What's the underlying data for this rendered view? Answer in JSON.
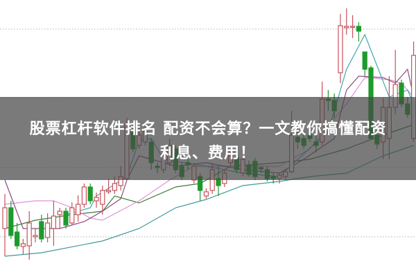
{
  "headline": {
    "line1": "股票杠杆软件排名 配资不会算？一文教你搞懂配资",
    "line2": "利息、费用！"
  },
  "colors": {
    "up": "#c8505a",
    "down": "#1e9a2c",
    "grid": "#b0b0b0",
    "ma_teal_long": "#3c9a9a",
    "ma_green": "#3a7a3a",
    "ma_pink": "#e090d8",
    "ma_purple": "#8a4a7a",
    "ma_teal_short": "#40a8b0",
    "overlay": "#464646"
  },
  "chart_data": {
    "type": "candlestick",
    "title": "",
    "xlabel": "",
    "ylabel": "",
    "ylim": [
      0,
      40
    ],
    "grid": "horizontal-dotted",
    "gridlines": [
      5.8,
      15.8,
      25.9,
      35.8
    ],
    "legend": "none",
    "candles": [
      [
        7.0,
        10.0,
        12.0,
        3.0
      ],
      [
        10.0,
        6.0,
        11.0,
        5.5
      ],
      [
        6.5,
        4.5,
        7.8,
        4.0
      ],
      [
        4.4,
        4.8,
        5.5,
        3.2
      ],
      [
        4.5,
        7.8,
        9.5,
        2.5
      ],
      [
        5.8,
        6.0,
        7.0,
        5.0
      ],
      [
        8.0,
        5.5,
        9.0,
        5.0
      ],
      [
        5.7,
        7.8,
        9.2,
        5.0
      ],
      [
        7.0,
        8.8,
        11.0,
        4.5
      ],
      [
        9.0,
        9.5,
        10.0,
        7.0
      ],
      [
        9.5,
        7.5,
        10.0,
        7.0
      ],
      [
        7.8,
        10.0,
        10.8,
        7.5
      ],
      [
        9.0,
        10.5,
        11.8,
        8.0
      ],
      [
        10.5,
        13.0,
        13.5,
        10.0
      ],
      [
        13.0,
        11.0,
        13.5,
        10.5
      ],
      [
        11.0,
        11.5,
        12.2,
        10.0
      ],
      [
        10.5,
        12.5,
        13.2,
        9.0
      ],
      [
        12.3,
        12.5,
        14.2,
        12.0
      ],
      [
        12.5,
        13.5,
        14.5,
        12.0
      ],
      [
        13.2,
        14.5,
        16.0,
        12.5
      ],
      [
        14.2,
        22.0,
        23.0,
        14.0
      ],
      [
        21.0,
        18.5,
        21.5,
        18.0
      ],
      [
        19.0,
        20.5,
        21.5,
        18.5
      ],
      [
        19.5,
        21.0,
        22.0,
        19.0
      ],
      [
        19.5,
        16.5,
        20.0,
        15.5
      ],
      [
        16.0,
        15.8,
        16.5,
        15.0
      ],
      [
        15.5,
        17.5,
        17.8,
        15.0
      ],
      [
        16.5,
        19.0,
        20.0,
        16.0
      ],
      [
        18.5,
        15.5,
        19.0,
        15.0
      ],
      [
        16.0,
        14.5,
        16.5,
        14.0
      ],
      [
        16.5,
        16.2,
        17.0,
        15.5
      ],
      [
        14.0,
        16.0,
        16.5,
        13.5
      ],
      [
        14.5,
        12.5,
        15.0,
        11.0
      ],
      [
        11.7,
        12.3,
        12.8,
        11.3
      ],
      [
        12.5,
        15.5,
        16.5,
        12.0
      ],
      [
        14.2,
        13.2,
        16.0,
        11.7
      ],
      [
        13.5,
        15.0,
        15.5,
        13.0
      ],
      [
        16.5,
        17.5,
        18.0,
        16.0
      ],
      [
        17.2,
        15.5,
        17.8,
        15.0
      ],
      [
        15.0,
        17.0,
        17.5,
        14.5
      ],
      [
        16.2,
        14.8,
        16.8,
        14.5
      ],
      [
        16.7,
        14.5,
        17.2,
        14.0
      ],
      [
        15.8,
        15.6,
        16.0,
        15.0
      ],
      [
        15.5,
        14.2,
        16.0,
        13.8
      ],
      [
        14.5,
        14.2,
        15.0,
        13.5
      ],
      [
        14.2,
        14.7,
        15.0,
        13.5
      ],
      [
        14.5,
        15.2,
        15.5,
        14.0
      ],
      [
        15.2,
        20.5,
        24.0,
        15.0
      ],
      [
        20.2,
        19.5,
        21.5,
        18.5
      ],
      [
        20.0,
        19.0,
        21.0,
        18.5
      ],
      [
        20.5,
        20.0,
        21.0,
        19.5
      ],
      [
        19.5,
        19.0,
        20.5,
        18.0
      ],
      [
        19.5,
        25.7,
        28.2,
        19.0
      ],
      [
        25.7,
        25.5,
        27.0,
        24.0
      ],
      [
        25.5,
        24.0,
        26.5,
        23.0
      ],
      [
        29.5,
        36.3,
        38.0,
        28.0
      ],
      [
        36.0,
        36.2,
        38.8,
        35.0
      ],
      [
        36.1,
        36.2,
        37.8,
        34.5
      ],
      [
        36.2,
        35.5,
        36.8,
        34.0
      ],
      [
        32.5,
        30.0,
        32.5,
        29.0
      ],
      [
        30.2,
        20.0,
        30.5,
        20.0
      ],
      [
        20.5,
        19.2,
        22.0,
        18.5
      ],
      [
        19.5,
        24.5,
        25.8,
        17.0
      ],
      [
        20.0,
        24.5,
        29.0,
        17.0
      ],
      [
        24.5,
        27.8,
        32.8,
        23.5
      ],
      [
        28.0,
        25.0,
        28.5,
        24.5
      ],
      [
        25.0,
        23.5,
        26.0,
        23.0
      ],
      [
        20.0,
        32.0,
        34.0,
        19.5
      ]
    ],
    "candle_fields": [
      "open",
      "close",
      "high",
      "low"
    ],
    "moving_averages": [
      {
        "color_key": "ma_teal_long",
        "points": [
          [
            0,
            3.0
          ],
          [
            6,
            3.5
          ],
          [
            16,
            5.2
          ],
          [
            22,
            7.0
          ],
          [
            28,
            10.0
          ],
          [
            33,
            11.2
          ],
          [
            39,
            13.2
          ],
          [
            45,
            13.8
          ],
          [
            50,
            14.5
          ],
          [
            56,
            15.0
          ],
          [
            62,
            17.5
          ],
          [
            67,
            19.0
          ]
        ]
      },
      {
        "color_key": "ma_green",
        "points": [
          [
            0,
            7.0
          ],
          [
            5,
            8.2
          ],
          [
            11,
            9.0
          ],
          [
            16,
            9.5
          ],
          [
            18,
            11.7
          ],
          [
            22,
            10.7
          ],
          [
            28,
            13.0
          ],
          [
            32,
            13.5
          ],
          [
            37,
            16.0
          ],
          [
            45,
            16.5
          ],
          [
            50,
            17.0
          ],
          [
            56,
            18.5
          ],
          [
            62,
            20.5
          ],
          [
            67,
            22.0
          ]
        ]
      },
      {
        "color_key": "ma_pink",
        "points": [
          [
            0,
            10.5
          ],
          [
            5,
            11.0
          ],
          [
            8,
            11.0
          ],
          [
            11,
            10.0
          ],
          [
            14,
            8.5
          ],
          [
            16,
            8.2
          ],
          [
            22,
            11.0
          ],
          [
            27,
            14.0
          ],
          [
            31,
            16.0
          ],
          [
            37,
            16.0
          ],
          [
            45,
            16.0
          ],
          [
            50,
            18.5
          ],
          [
            56,
            25.0
          ],
          [
            59,
            28.8
          ],
          [
            63,
            28.5
          ],
          [
            65,
            28.0
          ],
          [
            67,
            26.0
          ]
        ]
      },
      {
        "color_key": "ma_purple",
        "points": [
          [
            0,
            14.0
          ],
          [
            3,
            7.0
          ],
          [
            6,
            7.0
          ],
          [
            9,
            7.0
          ],
          [
            13,
            8.0
          ],
          [
            16,
            9.5
          ],
          [
            19,
            11.3
          ],
          [
            20,
            14.0
          ],
          [
            22,
            17.5
          ],
          [
            24,
            17.0
          ],
          [
            28,
            16.0
          ],
          [
            33,
            16.5
          ],
          [
            39,
            15.5
          ],
          [
            45,
            15.0
          ],
          [
            49,
            17.0
          ],
          [
            54,
            20.0
          ],
          [
            56,
            27.0
          ],
          [
            58,
            29.0
          ],
          [
            62,
            28.8
          ],
          [
            64,
            28.0
          ],
          [
            66,
            30.0
          ],
          [
            67,
            26.0
          ]
        ]
      },
      {
        "color_key": "ma_teal_short",
        "points": [
          [
            10,
            9.0
          ],
          [
            14,
            10.0
          ],
          [
            15,
            11.7
          ],
          [
            20,
            14.5
          ],
          [
            22,
            19.7
          ],
          [
            24,
            20.0
          ],
          [
            26,
            17.0
          ],
          [
            33,
            16.0
          ],
          [
            39,
            15.0
          ],
          [
            45,
            14.5
          ],
          [
            48,
            17.0
          ],
          [
            53,
            21.0
          ],
          [
            56,
            30.0
          ],
          [
            59,
            35.0
          ],
          [
            63,
            26.0
          ],
          [
            66,
            27.0
          ],
          [
            67,
            25.0
          ]
        ]
      }
    ]
  }
}
